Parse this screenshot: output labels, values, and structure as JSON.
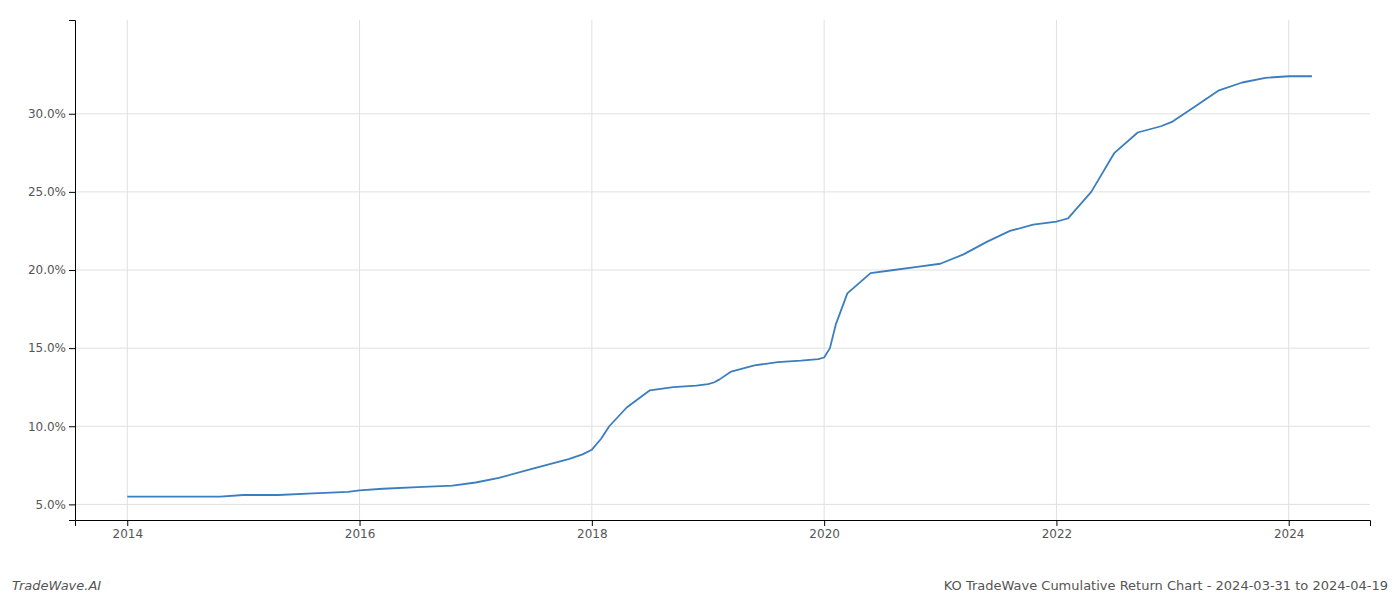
{
  "chart_data": {
    "type": "line",
    "title": "KO TradeWave Cumulative Return Chart - 2024-03-31 to 2024-04-19",
    "annotations": [
      "TradeWave.AI"
    ],
    "color": "#3a7ebf",
    "grid": true,
    "x": [
      2014.0,
      2014.2,
      2014.5,
      2014.8,
      2015.0,
      2015.3,
      2015.6,
      2015.9,
      2016.0,
      2016.2,
      2016.5,
      2016.8,
      2017.0,
      2017.2,
      2017.5,
      2017.8,
      2017.92,
      2018.0,
      2018.08,
      2018.15,
      2018.3,
      2018.5,
      2018.7,
      2018.9,
      2019.0,
      2019.05,
      2019.1,
      2019.2,
      2019.4,
      2019.6,
      2019.8,
      2019.95,
      2020.0,
      2020.05,
      2020.1,
      2020.2,
      2020.4,
      2020.6,
      2020.8,
      2021.0,
      2021.2,
      2021.4,
      2021.6,
      2021.8,
      2022.0,
      2022.05,
      2022.1,
      2022.3,
      2022.5,
      2022.7,
      2022.9,
      2023.0,
      2023.1,
      2023.2,
      2023.4,
      2023.6,
      2023.8,
      2024.0,
      2024.2
    ],
    "values": [
      5.5,
      5.5,
      5.5,
      5.5,
      5.6,
      5.6,
      5.7,
      5.8,
      5.9,
      6.0,
      6.1,
      6.2,
      6.4,
      6.7,
      7.3,
      7.9,
      8.2,
      8.5,
      9.2,
      10.0,
      11.2,
      12.3,
      12.5,
      12.6,
      12.7,
      12.8,
      13.0,
      13.5,
      13.9,
      14.1,
      14.2,
      14.3,
      14.4,
      15.0,
      16.5,
      18.5,
      19.8,
      20.0,
      20.2,
      20.4,
      21.0,
      21.8,
      22.5,
      22.9,
      23.1,
      23.2,
      23.3,
      25.0,
      27.5,
      28.8,
      29.2,
      29.5,
      30.0,
      30.5,
      31.5,
      32.0,
      32.3,
      32.4,
      32.4
    ],
    "xlim": [
      2013.55,
      2024.7
    ],
    "xticks": [
      2014,
      2016,
      2018,
      2020,
      2022,
      2024
    ],
    "ylim": [
      4.0,
      36.0
    ],
    "yticks": [
      {
        "value": 5.0,
        "label": "5.0%"
      },
      {
        "value": 10.0,
        "label": "10.0%"
      },
      {
        "value": 15.0,
        "label": "15.0%"
      },
      {
        "value": 20.0,
        "label": "20.0%"
      },
      {
        "value": 25.0,
        "label": "25.0%"
      },
      {
        "value": 30.0,
        "label": "30.0%"
      }
    ]
  }
}
